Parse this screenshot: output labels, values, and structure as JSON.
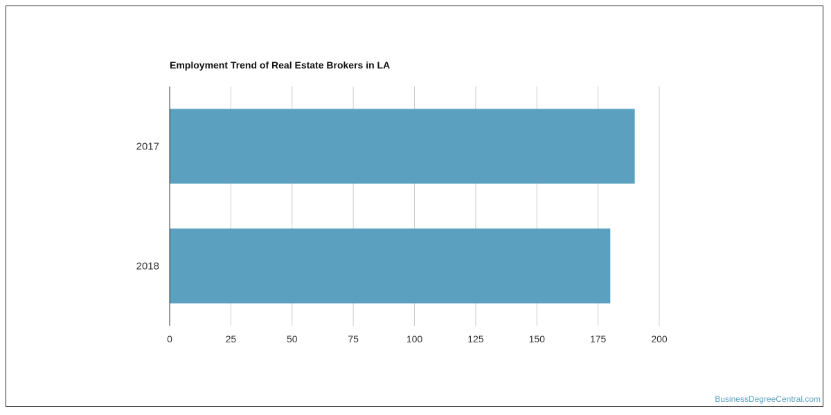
{
  "chart_data": {
    "type": "bar",
    "orientation": "horizontal",
    "title": "Employment Trend of Real Estate Brokers in LA",
    "categories": [
      "2017",
      "2018"
    ],
    "values": [
      190,
      180
    ],
    "xlim": [
      0,
      200
    ],
    "x_ticks": [
      0,
      25,
      50,
      75,
      100,
      125,
      150,
      175,
      200
    ],
    "grid": "vertical",
    "bar_color": "#5ba1bf",
    "grid_color": "#cccccc",
    "xlabel": "",
    "ylabel": ""
  },
  "watermark": "BusinessDegreeCentral.com"
}
